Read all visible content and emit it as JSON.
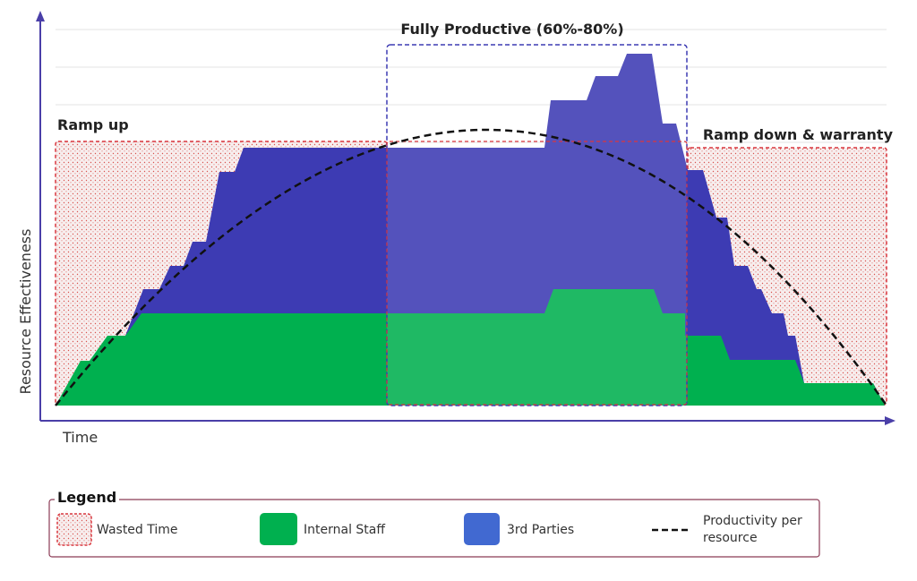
{
  "annotations": {
    "fully_productive": "Fully Productive (60%-80%)",
    "ramp_up": "Ramp up",
    "ramp_down": "Ramp down & warranty"
  },
  "axes": {
    "y_label": "Resource Effectiveness",
    "x_label": "Time"
  },
  "legend": {
    "title": "Legend",
    "items": [
      "Wasted Time",
      "Internal Staff",
      "3rd Parties",
      "Productivity per resource"
    ]
  }
}
